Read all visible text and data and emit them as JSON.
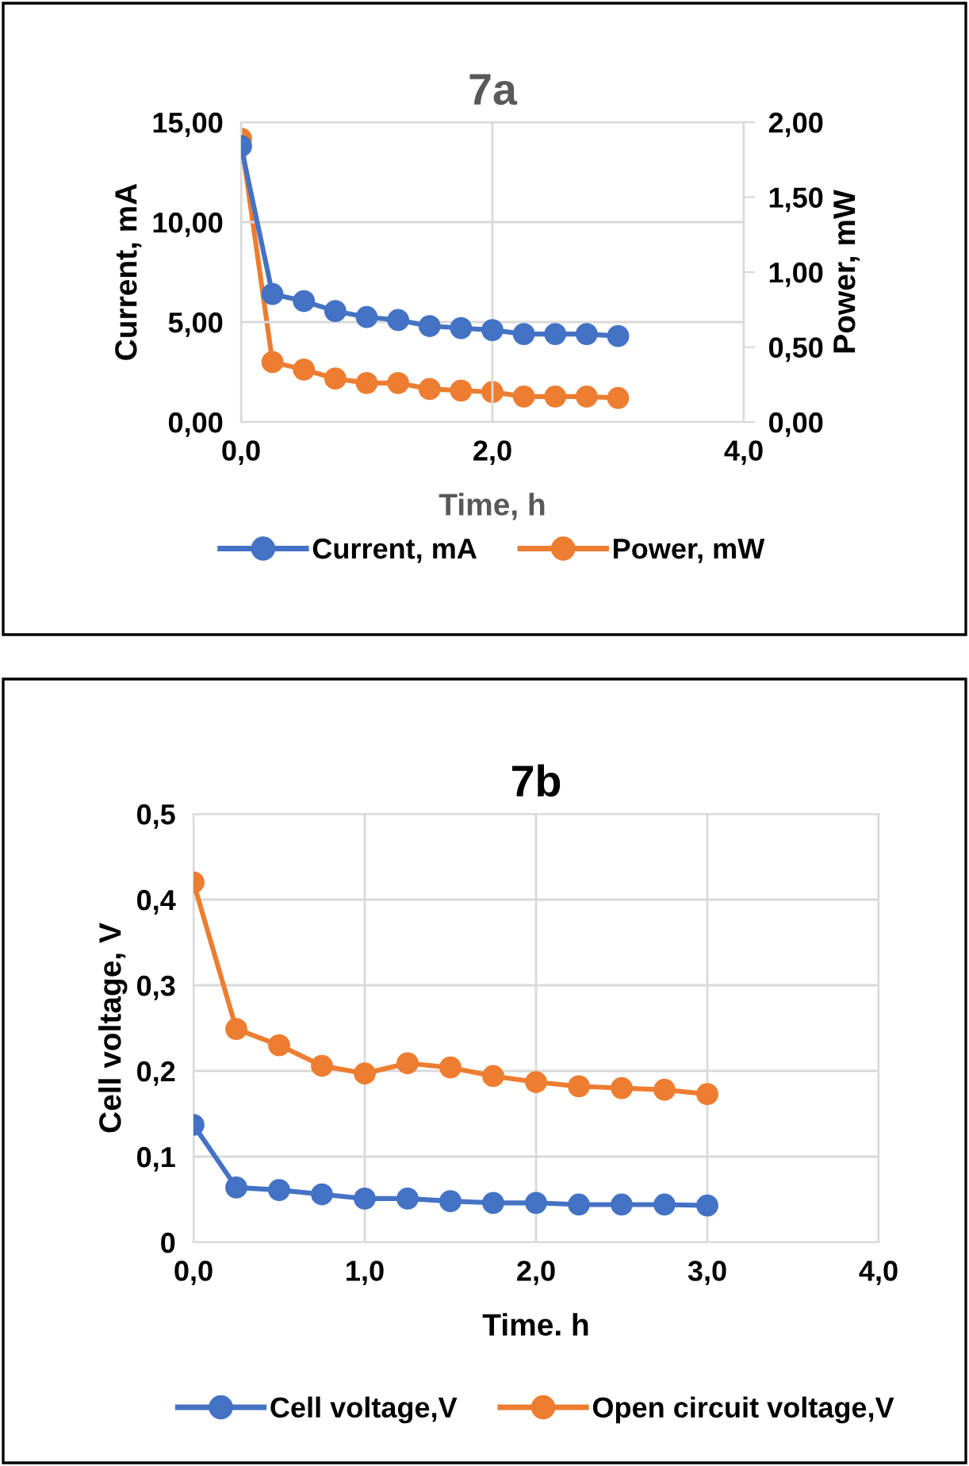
{
  "chart_data": [
    {
      "type": "line",
      "title": "7a",
      "xlabel": "Time, h",
      "ylabel": "Current, mA",
      "y2label": "Power, mW",
      "x": [
        0,
        0.25,
        0.5,
        0.75,
        1,
        1.25,
        1.5,
        1.75,
        2,
        2.25,
        2.5,
        2.75,
        3
      ],
      "series": [
        {
          "name": "Current, mA",
          "color": "#4472c4",
          "values": [
            13.8,
            6.4,
            6.05,
            5.55,
            5.25,
            5.1,
            4.8,
            4.7,
            4.6,
            4.4,
            4.4,
            4.4,
            4.3
          ]
        },
        {
          "name": "Power, mW",
          "color": "#ed7d31",
          "axis": "y2",
          "values": [
            1.89,
            0.4,
            0.35,
            0.29,
            0.26,
            0.26,
            0.22,
            0.21,
            0.2,
            0.17,
            0.17,
            0.17,
            0.16
          ]
        }
      ],
      "xlim": [
        0,
        4
      ],
      "xticks": [
        {
          "value": 0,
          "label": "0,0"
        },
        {
          "value": 2,
          "label": "2,0"
        },
        {
          "value": 4,
          "label": "4,0"
        }
      ],
      "ylim": [
        0,
        15
      ],
      "yticks": [
        {
          "value": 0,
          "label": "0,00"
        },
        {
          "value": 5,
          "label": "5,00"
        },
        {
          "value": 10,
          "label": "10,00"
        },
        {
          "value": 15,
          "label": "15,00"
        }
      ],
      "y2lim": [
        0,
        2
      ],
      "y2ticks": [
        {
          "value": 0,
          "label": "0,00"
        },
        {
          "value": 0.5,
          "label": "0,50"
        },
        {
          "value": 1,
          "label": "1,00"
        },
        {
          "value": 1.5,
          "label": "1,50"
        },
        {
          "value": 2,
          "label": "2,00"
        }
      ],
      "grid": true,
      "legend": "bottom",
      "marker": "circle",
      "line_style": "solid"
    },
    {
      "type": "line",
      "title": "7b",
      "xlabel": "Time. h",
      "ylabel": "Cell voltage, V",
      "x": [
        0,
        0.25,
        0.5,
        0.75,
        1,
        1.25,
        1.5,
        1.75,
        2,
        2.25,
        2.5,
        2.75,
        3
      ],
      "series": [
        {
          "name": "Cell voltage,V",
          "color": "#4472c4",
          "values": [
            0.137,
            0.064,
            0.061,
            0.056,
            0.051,
            0.051,
            0.048,
            0.046,
            0.046,
            0.044,
            0.044,
            0.044,
            0.043
          ]
        },
        {
          "name": "Open circuit voltage,V",
          "color": "#ed7d31",
          "values": [
            0.42,
            0.249,
            0.23,
            0.206,
            0.197,
            0.209,
            0.204,
            0.194,
            0.187,
            0.182,
            0.18,
            0.178,
            0.173
          ]
        }
      ],
      "xlim": [
        0,
        4
      ],
      "xticks": [
        {
          "value": 0,
          "label": "0,0"
        },
        {
          "value": 1,
          "label": "1,0"
        },
        {
          "value": 2,
          "label": "2,0"
        },
        {
          "value": 3,
          "label": "3,0"
        },
        {
          "value": 4,
          "label": "4,0"
        }
      ],
      "ylim": [
        0,
        0.5
      ],
      "yticks": [
        {
          "value": 0,
          "label": "0"
        },
        {
          "value": 0.1,
          "label": "0,1"
        },
        {
          "value": 0.2,
          "label": "0,2"
        },
        {
          "value": 0.3,
          "label": "0,3"
        },
        {
          "value": 0.4,
          "label": "0,4"
        },
        {
          "value": 0.5,
          "label": "0,5"
        }
      ],
      "grid": true,
      "legend": "bottom",
      "marker": "circle",
      "line_style": "solid"
    }
  ]
}
